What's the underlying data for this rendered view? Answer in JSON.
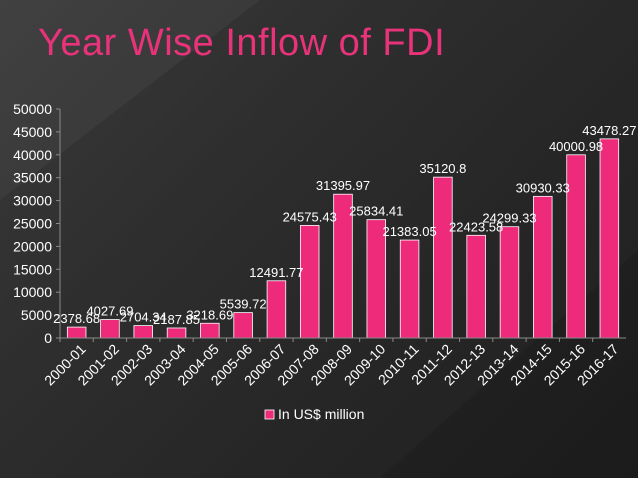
{
  "chart_data": {
    "type": "bar",
    "title": "Year Wise Inflow of FDI",
    "categories": [
      "2000-01",
      "2001-02",
      "2002-03",
      "2003-04",
      "2004-05",
      "2005-06",
      "2006-07",
      "2007-08",
      "2008-09",
      "2009-10",
      "2010-11",
      "2011-12",
      "2012-13",
      "2013-14",
      "2014-15",
      "2015-16",
      "2016-17"
    ],
    "series": [
      {
        "name": "In US$ million",
        "values": [
          2378.68,
          4027.69,
          2704.34,
          2187.85,
          3218.69,
          5539.72,
          12491.77,
          24575.43,
          31395.97,
          25834.41,
          21383.05,
          35120.8,
          22423.58,
          24299.33,
          30930.33,
          40000.98,
          43478.27
        ],
        "labels": [
          "2378.68",
          "4027.69",
          "2704.34",
          "2187.85",
          "3218.69",
          "5539.72",
          "12491.77",
          "24575.43",
          "31395.97",
          "25834.41",
          "21383.05",
          "35120.8",
          "22423.58",
          "24299.33",
          "30930.33",
          "40000.98",
          "43478.27"
        ],
        "color": "#ee2a7b"
      }
    ],
    "ylim": [
      0,
      50000
    ],
    "yticks": [
      "0",
      "5000",
      "10000",
      "15000",
      "20000",
      "25000",
      "30000",
      "35000",
      "40000",
      "45000",
      "50000"
    ],
    "grid": false,
    "legend_position": "bottom",
    "xlabel": "",
    "ylabel": ""
  },
  "colors": {
    "title": "#e8327a",
    "bar": "#ee2a7b",
    "text": "#ffffff"
  }
}
